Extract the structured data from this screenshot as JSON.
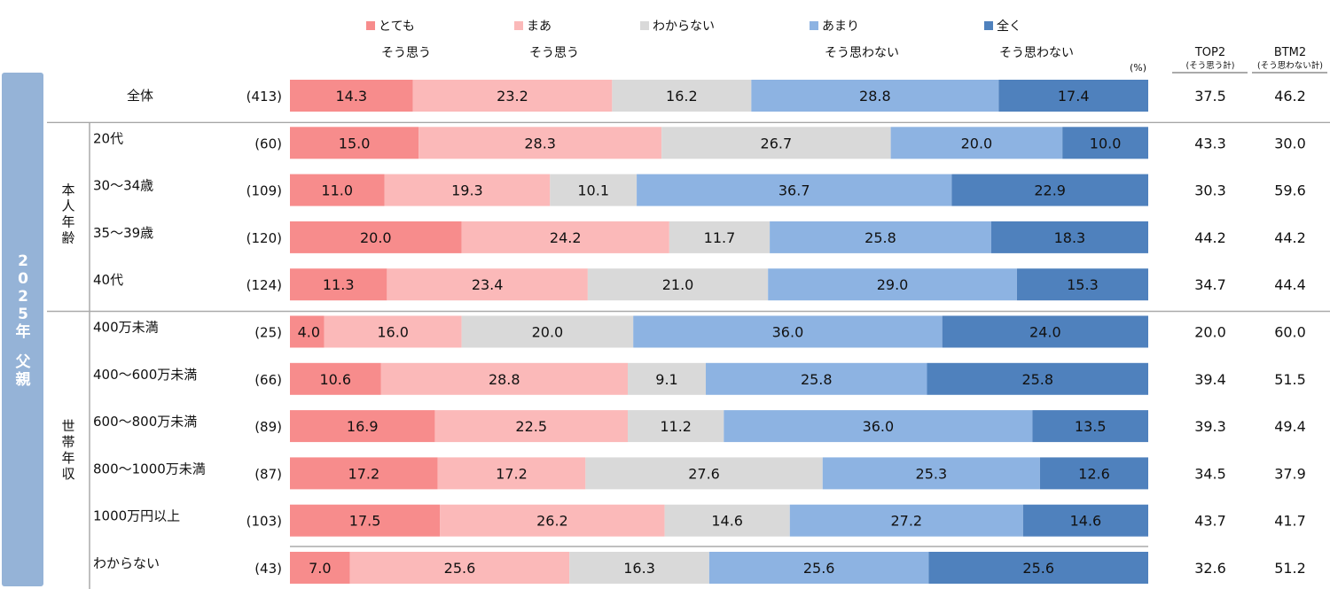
{
  "chart_data": {
    "type": "bar",
    "orientation": "horizontal-stacked-100",
    "unit_label": "(%)",
    "side_label": "2025年 父親",
    "legend": [
      {
        "line1": "とても",
        "line2": "そう思う",
        "color": "#f78c8c"
      },
      {
        "line1": "まあ",
        "line2": "そう思う",
        "color": "#fbb9b9"
      },
      {
        "line1": "わからない",
        "line2": "",
        "color": "#d9d9d9"
      },
      {
        "line1": "あまり",
        "line2": "そう思わない",
        "color": "#8db3e2"
      },
      {
        "line1": "全く",
        "line2": "そう思わない",
        "color": "#4f81bd"
      }
    ],
    "series": [
      {
        "name": "とてもそう思う",
        "values": [
          14.3,
          15.0,
          11.0,
          20.0,
          11.3,
          4.0,
          10.6,
          16.9,
          17.2,
          17.5,
          7.0
        ]
      },
      {
        "name": "まあそう思う",
        "values": [
          23.2,
          28.3,
          19.3,
          24.2,
          23.4,
          16.0,
          28.8,
          22.5,
          17.2,
          26.2,
          25.6
        ]
      },
      {
        "name": "わからない",
        "values": [
          16.2,
          26.7,
          10.1,
          11.7,
          21.0,
          20.0,
          9.1,
          11.2,
          27.6,
          14.6,
          16.3
        ]
      },
      {
        "name": "あまりそう思わない",
        "values": [
          28.8,
          20.0,
          36.7,
          25.8,
          29.0,
          36.0,
          25.8,
          36.0,
          25.3,
          27.2,
          25.6
        ]
      },
      {
        "name": "全くそう思わない",
        "values": [
          17.4,
          10.0,
          22.9,
          18.3,
          15.3,
          24.0,
          25.8,
          13.5,
          12.6,
          14.6,
          25.6
        ]
      }
    ],
    "groups": [
      {
        "label": "",
        "rows": [
          0
        ]
      },
      {
        "label": "本人年齢",
        "rows": [
          1,
          2,
          3,
          4
        ]
      },
      {
        "label": "世帯年収",
        "rows": [
          5,
          6,
          7,
          8,
          9,
          10
        ]
      }
    ],
    "categories": [
      "全体",
      "20代",
      "30～34歳",
      "35～39歳",
      "40代",
      "400万未満",
      "400～600万未満",
      "600～800万未満",
      "800～1000万未満",
      "1000万円以上",
      "わからない"
    ],
    "n": [
      "(413)",
      "(60)",
      "(109)",
      "(120)",
      "(124)",
      "(25)",
      "(66)",
      "(89)",
      "(87)",
      "(103)",
      "(43)"
    ],
    "summary_columns": [
      {
        "title": "TOP2",
        "subtitle": "(そう思う計)",
        "values": [
          37.5,
          43.3,
          30.3,
          44.2,
          34.7,
          20.0,
          39.4,
          39.3,
          34.5,
          43.7,
          32.6
        ]
      },
      {
        "title": "BTM2",
        "subtitle": "(そう思わない計)",
        "values": [
          46.2,
          30.0,
          59.6,
          44.2,
          44.4,
          60.0,
          51.5,
          49.4,
          37.9,
          41.7,
          51.2
        ]
      }
    ],
    "xlim": [
      0,
      100
    ],
    "grid": false,
    "legend_position": "top"
  }
}
